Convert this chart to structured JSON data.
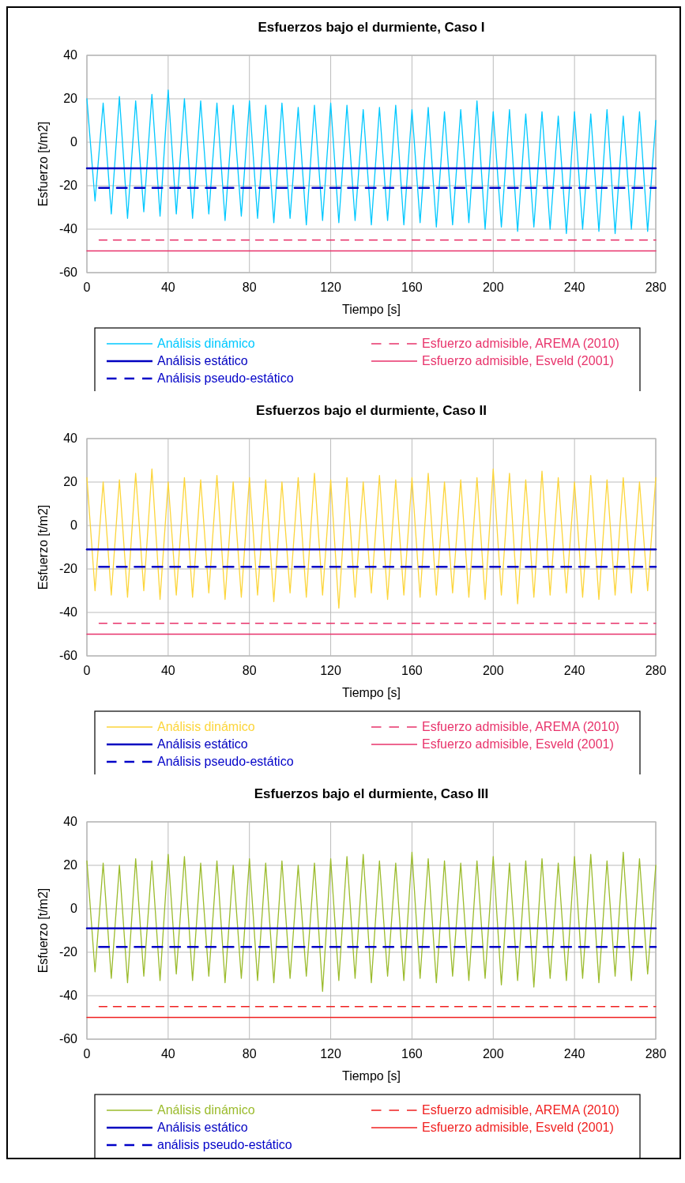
{
  "chart_data": [
    {
      "type": "line",
      "title": "Esfuerzos bajo el durmiente, Caso I",
      "xlabel": "Tiempo [s]",
      "ylabel": "Esfuerzo [t/m2]",
      "xlim": [
        0,
        280
      ],
      "xticks": [
        0,
        40,
        80,
        120,
        160,
        200,
        240,
        280
      ],
      "ylim": [
        -60,
        40
      ],
      "yticks": [
        -60,
        -40,
        -20,
        0,
        20,
        40
      ],
      "grid": true,
      "legend": "bottom",
      "x": [
        0,
        4,
        8,
        12,
        16,
        20,
        24,
        28,
        32,
        36,
        40,
        44,
        48,
        52,
        56,
        60,
        64,
        68,
        72,
        76,
        80,
        84,
        88,
        92,
        96,
        100,
        104,
        108,
        112,
        116,
        120,
        124,
        128,
        132,
        136,
        140,
        144,
        148,
        152,
        156,
        160,
        164,
        168,
        172,
        176,
        180,
        184,
        188,
        192,
        196,
        200,
        204,
        208,
        212,
        216,
        220,
        224,
        228,
        232,
        236,
        240,
        244,
        248,
        252,
        256,
        260,
        264,
        268,
        272,
        276,
        280
      ],
      "series": [
        {
          "name": "Análisis dinámico",
          "color": "#00c8ff",
          "line_style": "solid",
          "values": [
            20,
            -27,
            18,
            -33,
            21,
            -35,
            19,
            -32,
            22,
            -34,
            24,
            -33,
            20,
            -35,
            19,
            -33,
            18,
            -36,
            17,
            -34,
            19,
            -35,
            17,
            -37,
            18,
            -35,
            16,
            -38,
            17,
            -36,
            18,
            -37,
            17,
            -36,
            15,
            -38,
            16,
            -36,
            17,
            -38,
            15,
            -37,
            16,
            -39,
            14,
            -38,
            15,
            -37,
            19,
            -40,
            14,
            -39,
            15,
            -41,
            13,
            -39,
            14,
            -40,
            12,
            -42,
            14,
            -40,
            13,
            -41,
            15,
            -42,
            12,
            -40,
            14,
            -41,
            10
          ]
        },
        {
          "name": "Análisis estático",
          "color": "#0000c0",
          "line_style": "solid",
          "x": [
            0,
            280
          ],
          "values": [
            -12,
            -12
          ]
        },
        {
          "name": "Análisis pseudo-estático",
          "color": "#0000c8",
          "line_style": "dashed",
          "x": [
            6,
            280
          ],
          "values": [
            -21,
            -21
          ]
        },
        {
          "name": "Esfuerzo admisible, AREMA (2010)",
          "color": "#e8336b",
          "line_style": "dashed",
          "x": [
            6,
            280
          ],
          "values": [
            -45,
            -45
          ]
        },
        {
          "name": "Esfuerzo admisible, Esveld (2001)",
          "color": "#e8336b",
          "line_style": "solid",
          "x": [
            0,
            280
          ],
          "values": [
            -50,
            -50
          ]
        }
      ]
    },
    {
      "type": "line",
      "title": "Esfuerzos bajo el durmiente, Caso II",
      "xlabel": "Tiempo [s]",
      "ylabel": "Esfuerzo [t/m2]",
      "xlim": [
        0,
        280
      ],
      "xticks": [
        0,
        40,
        80,
        120,
        160,
        200,
        240,
        280
      ],
      "ylim": [
        -60,
        40
      ],
      "yticks": [
        -60,
        -40,
        -20,
        0,
        20,
        40
      ],
      "grid": true,
      "legend": "bottom",
      "x": [
        0,
        4,
        8,
        12,
        16,
        20,
        24,
        28,
        32,
        36,
        40,
        44,
        48,
        52,
        56,
        60,
        64,
        68,
        72,
        76,
        80,
        84,
        88,
        92,
        96,
        100,
        104,
        108,
        112,
        116,
        120,
        124,
        128,
        132,
        136,
        140,
        144,
        148,
        152,
        156,
        160,
        164,
        168,
        172,
        176,
        180,
        184,
        188,
        192,
        196,
        200,
        204,
        208,
        212,
        216,
        220,
        224,
        228,
        232,
        236,
        240,
        244,
        248,
        252,
        256,
        260,
        264,
        268,
        272,
        276,
        280
      ],
      "series": [
        {
          "name": "Análisis dinámico",
          "color": "#fcd53a",
          "line_style": "solid",
          "values": [
            22,
            -30,
            20,
            -32,
            21,
            -33,
            24,
            -30,
            26,
            -34,
            20,
            -32,
            22,
            -33,
            21,
            -31,
            23,
            -34,
            20,
            -33,
            22,
            -32,
            21,
            -35,
            20,
            -31,
            22,
            -33,
            24,
            -32,
            21,
            -38,
            22,
            -33,
            20,
            -31,
            23,
            -34,
            21,
            -32,
            22,
            -33,
            24,
            -32,
            20,
            -31,
            21,
            -33,
            22,
            -34,
            26,
            -32,
            24,
            -36,
            21,
            -33,
            25,
            -32,
            22,
            -31,
            20,
            -33,
            23,
            -34,
            21,
            -32,
            22,
            -31,
            20,
            -30,
            22
          ]
        },
        {
          "name": "Análisis estático",
          "color": "#0000c0",
          "line_style": "solid",
          "x": [
            0,
            280
          ],
          "values": [
            -11,
            -11
          ]
        },
        {
          "name": "Análisis pseudo-estático",
          "color": "#0000c8",
          "line_style": "dashed",
          "x": [
            6,
            280
          ],
          "values": [
            -19,
            -19
          ]
        },
        {
          "name": "Esfuerzo admisible, AREMA (2010)",
          "color": "#e8336b",
          "line_style": "dashed",
          "x": [
            6,
            280
          ],
          "values": [
            -45,
            -45
          ]
        },
        {
          "name": "Esfuerzo admisible, Esveld (2001)",
          "color": "#e8336b",
          "line_style": "solid",
          "x": [
            0,
            280
          ],
          "values": [
            -50,
            -50
          ]
        }
      ]
    },
    {
      "type": "line",
      "title": "Esfuerzos bajo el durmiente, Caso III",
      "xlabel": "Tiempo [s]",
      "ylabel": "Esfuerzo [t/m2]",
      "xlim": [
        0,
        280
      ],
      "xticks": [
        0,
        40,
        80,
        120,
        160,
        200,
        240,
        280
      ],
      "ylim": [
        -60,
        40
      ],
      "yticks": [
        -60,
        -40,
        -20,
        0,
        20,
        40
      ],
      "grid": true,
      "legend": "bottom",
      "x": [
        0,
        4,
        8,
        12,
        16,
        20,
        24,
        28,
        32,
        36,
        40,
        44,
        48,
        52,
        56,
        60,
        64,
        68,
        72,
        76,
        80,
        84,
        88,
        92,
        96,
        100,
        104,
        108,
        112,
        116,
        120,
        124,
        128,
        132,
        136,
        140,
        144,
        148,
        152,
        156,
        160,
        164,
        168,
        172,
        176,
        180,
        184,
        188,
        192,
        196,
        200,
        204,
        208,
        212,
        216,
        220,
        224,
        228,
        232,
        236,
        240,
        244,
        248,
        252,
        256,
        260,
        264,
        268,
        272,
        276,
        280
      ],
      "series": [
        {
          "name": "Análisis dinámico",
          "color": "#9bbb2c",
          "line_style": "solid",
          "values": [
            22,
            -29,
            21,
            -32,
            20,
            -34,
            23,
            -31,
            22,
            -33,
            25,
            -30,
            24,
            -33,
            21,
            -31,
            22,
            -34,
            20,
            -32,
            23,
            -33,
            21,
            -34,
            22,
            -32,
            20,
            -31,
            21,
            -38,
            23,
            -33,
            24,
            -32,
            25,
            -34,
            22,
            -31,
            21,
            -33,
            26,
            -32,
            23,
            -34,
            22,
            -31,
            21,
            -33,
            22,
            -32,
            24,
            -35,
            21,
            -33,
            22,
            -36,
            23,
            -32,
            21,
            -33,
            24,
            -32,
            25,
            -34,
            22,
            -31,
            26,
            -33,
            23,
            -30,
            20
          ]
        },
        {
          "name": "Análisis estático",
          "color": "#0000c0",
          "line_style": "solid",
          "x": [
            0,
            280
          ],
          "values": [
            -9,
            -9
          ]
        },
        {
          "name": "análisis pseudo-estático",
          "color": "#0000c8",
          "line_style": "dashed",
          "x": [
            6,
            280
          ],
          "values": [
            -17.5,
            -17.5
          ]
        },
        {
          "name": "Esfuerzo admisible, AREMA (2010)",
          "color": "#f02020",
          "line_style": "dashed",
          "x": [
            6,
            280
          ],
          "values": [
            -45,
            -45
          ]
        },
        {
          "name": "Esfuerzo admisible, Esveld (2001)",
          "color": "#f02020",
          "line_style": "solid",
          "x": [
            0,
            280
          ],
          "values": [
            -50,
            -50
          ]
        }
      ]
    }
  ]
}
